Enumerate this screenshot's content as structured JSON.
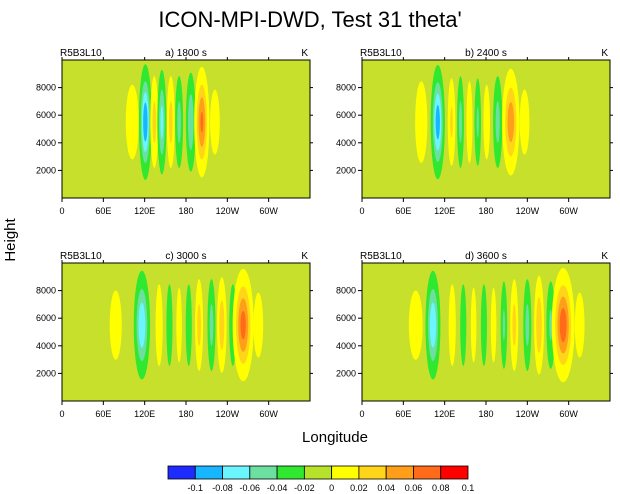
{
  "title": "ICON-MPI-DWD, Test 31 theta'",
  "ylabel": "Height",
  "xlabel": "Longitude",
  "colors": {
    "background": "#c6e02c",
    "levels": [
      "#1e2bff",
      "#17b6ff",
      "#6af5ff",
      "#6ce0a1",
      "#2fe82f",
      "#b6e32a",
      "#ffff00",
      "#ffd51a",
      "#ff9f19",
      "#ff6b19",
      "#ff0000"
    ]
  },
  "colorbar": {
    "labels": [
      "-0.1",
      "-0.08",
      "-0.06",
      "-0.04",
      "-0.02",
      "0",
      "0.02",
      "0.04",
      "0.06",
      "0.08",
      "0.1"
    ]
  },
  "chart_data": [
    {
      "type": "heatmap",
      "left_label": "R5B3L10",
      "center_label": "a) 1800 s",
      "right_label": "K",
      "x_ticks": [
        "0",
        "60E",
        "120E",
        "180",
        "120W",
        "60W"
      ],
      "y_ticks": [
        "2000",
        "4000",
        "6000",
        "8000"
      ],
      "xlim": [
        0,
        360
      ],
      "ylim": [
        0,
        10000
      ],
      "blobs": [
        {
          "lon": 102,
          "w": 7,
          "amp": 0.025
        },
        {
          "lon": 121,
          "w": 4.5,
          "amp": -0.09
        },
        {
          "lon": 134,
          "w": 3.5,
          "amp": 0.04
        },
        {
          "lon": 145,
          "w": 3.5,
          "amp": -0.06
        },
        {
          "lon": 158,
          "w": 3.5,
          "amp": 0.04
        },
        {
          "lon": 170,
          "w": 3.5,
          "amp": -0.04
        },
        {
          "lon": 187,
          "w": 4,
          "amp": -0.05
        },
        {
          "lon": 203,
          "w": 5.5,
          "amp": 0.075
        },
        {
          "lon": 222,
          "w": 6,
          "amp": 0.02
        }
      ]
    },
    {
      "type": "heatmap",
      "left_label": "R5B3L10",
      "center_label": "b) 2400 s",
      "right_label": "K",
      "x_ticks": [
        "0",
        "60E",
        "120E",
        "180",
        "120W",
        "60W"
      ],
      "y_ticks": [
        "2000",
        "4000",
        "6000",
        "8000"
      ],
      "xlim": [
        0,
        360
      ],
      "ylim": [
        0,
        10000
      ],
      "blobs": [
        {
          "lon": 86,
          "w": 6,
          "amp": 0.03
        },
        {
          "lon": 110,
          "w": 5,
          "amp": -0.085
        },
        {
          "lon": 130,
          "w": 3.5,
          "amp": 0.035
        },
        {
          "lon": 143,
          "w": 3,
          "amp": -0.04
        },
        {
          "lon": 156,
          "w": 3,
          "amp": 0.03
        },
        {
          "lon": 168,
          "w": 3,
          "amp": -0.035
        },
        {
          "lon": 181,
          "w": 3.5,
          "amp": 0.025
        },
        {
          "lon": 197,
          "w": 4,
          "amp": -0.04
        },
        {
          "lon": 216,
          "w": 6.5,
          "amp": 0.065
        },
        {
          "lon": 236,
          "w": 6,
          "amp": 0.02
        }
      ]
    },
    {
      "type": "heatmap",
      "left_label": "R5B3L10",
      "center_label": "c) 3000 s",
      "right_label": "K",
      "x_ticks": [
        "0",
        "60E",
        "120E",
        "180",
        "120W",
        "60W"
      ],
      "y_ticks": [
        "2000",
        "4000",
        "6000",
        "8000"
      ],
      "xlim": [
        0,
        360
      ],
      "ylim": [
        0,
        10000
      ],
      "blobs": [
        {
          "lon": 78,
          "w": 7,
          "amp": 0.022
        },
        {
          "lon": 116,
          "w": 6,
          "amp": -0.07
        },
        {
          "lon": 141,
          "w": 3.5,
          "amp": 0.03
        },
        {
          "lon": 156,
          "w": 3,
          "amp": -0.03
        },
        {
          "lon": 170,
          "w": 3,
          "amp": 0.025
        },
        {
          "lon": 184,
          "w": 3,
          "amp": -0.03
        },
        {
          "lon": 199,
          "w": 3.5,
          "amp": 0.04
        },
        {
          "lon": 217,
          "w": 3.5,
          "amp": -0.04
        },
        {
          "lon": 232,
          "w": 4,
          "amp": 0.045
        },
        {
          "lon": 248,
          "w": 3.5,
          "amp": -0.03
        },
        {
          "lon": 263,
          "w": 7.5,
          "amp": 0.08
        },
        {
          "lon": 285,
          "w": 6,
          "amp": 0.02
        }
      ]
    },
    {
      "type": "heatmap",
      "left_label": "R5B3L10",
      "center_label": "d) 3600 s",
      "right_label": "K",
      "x_ticks": [
        "0",
        "60E",
        "120E",
        "180",
        "120W",
        "60W"
      ],
      "y_ticks": [
        "2000",
        "4000",
        "6000",
        "8000"
      ],
      "xlim": [
        0,
        360
      ],
      "ylim": [
        0,
        10000
      ],
      "blobs": [
        {
          "lon": 78,
          "w": 8,
          "amp": 0.022
        },
        {
          "lon": 103,
          "w": 5.5,
          "amp": -0.07
        },
        {
          "lon": 131,
          "w": 3.5,
          "amp": 0.03
        },
        {
          "lon": 147,
          "w": 3,
          "amp": -0.03
        },
        {
          "lon": 162,
          "w": 3,
          "amp": 0.025
        },
        {
          "lon": 177,
          "w": 3,
          "amp": -0.03
        },
        {
          "lon": 191,
          "w": 3,
          "amp": 0.025
        },
        {
          "lon": 206,
          "w": 3,
          "amp": -0.035
        },
        {
          "lon": 221,
          "w": 3.5,
          "amp": 0.04
        },
        {
          "lon": 240,
          "w": 3.5,
          "amp": -0.04
        },
        {
          "lon": 257,
          "w": 4,
          "amp": 0.05
        },
        {
          "lon": 274,
          "w": 4,
          "amp": -0.035
        },
        {
          "lon": 292,
          "w": 8,
          "amp": 0.085
        },
        {
          "lon": 316,
          "w": 6,
          "amp": 0.02
        }
      ]
    }
  ]
}
